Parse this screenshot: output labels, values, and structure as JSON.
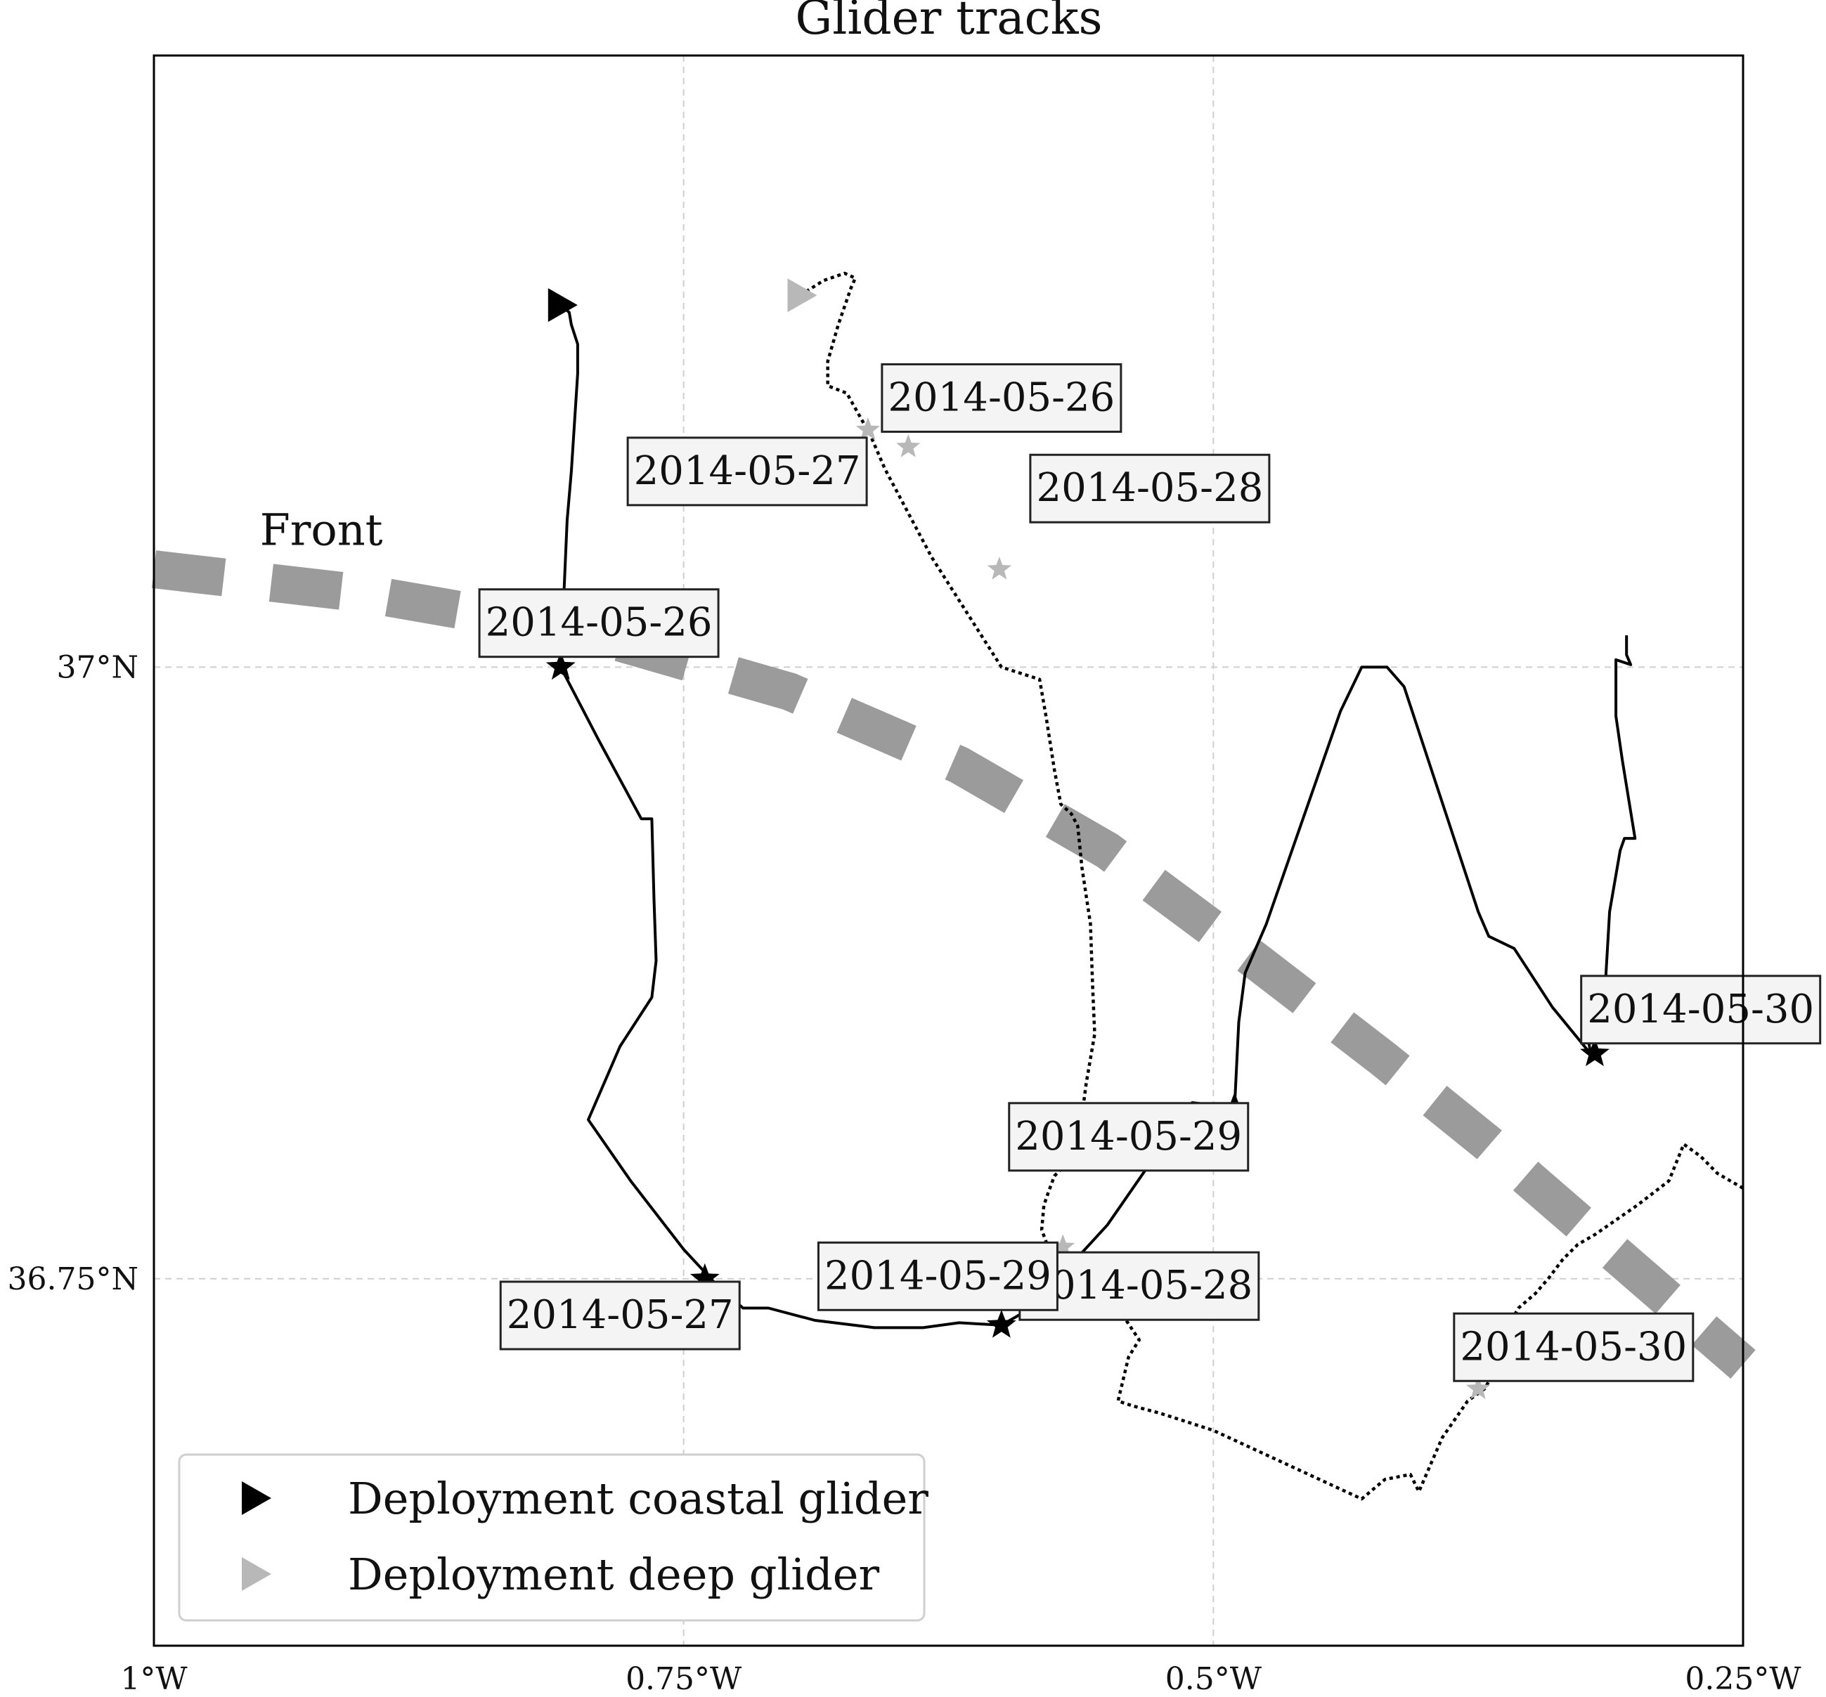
{
  "chart_data": {
    "type": "line",
    "title": "Glider tracks",
    "xlabel": "",
    "ylabel": "",
    "xlim": [
      -1.0,
      -0.25
    ],
    "ylim": [
      36.6,
      37.25
    ],
    "grid": true,
    "x_ticks": [
      {
        "value": -1.0,
        "label": "1°W"
      },
      {
        "value": -0.75,
        "label": "0.75°W"
      },
      {
        "value": -0.5,
        "label": "0.5°W"
      },
      {
        "value": -0.25,
        "label": "0.25°W"
      }
    ],
    "y_ticks": [
      {
        "value": 37.0,
        "label": "37°N"
      },
      {
        "value": 36.75,
        "label": "36.75°N"
      }
    ],
    "front": {
      "label": "Front",
      "label_pos": [
        -0.95,
        37.05
      ],
      "color": "#9b9b9b",
      "points": [
        [
          -1.0,
          37.04
        ],
        [
          -0.9,
          37.03
        ],
        [
          -0.8,
          37.015
        ],
        [
          -0.7,
          36.99
        ],
        [
          -0.62,
          36.96
        ],
        [
          -0.55,
          36.925
        ],
        [
          -0.48,
          36.88
        ],
        [
          -0.42,
          36.84
        ],
        [
          -0.37,
          36.805
        ],
        [
          -0.33,
          36.775
        ],
        [
          -0.29,
          36.745
        ],
        [
          -0.25,
          36.715
        ]
      ]
    },
    "series": [
      {
        "color": "#000000",
        "style": "solid",
        "points": [
          [
            -0.808,
            37.148
          ],
          [
            -0.804,
            37.145
          ],
          [
            -0.803,
            37.14
          ],
          [
            -0.8,
            37.132
          ],
          [
            -0.8,
            37.12
          ],
          [
            -0.803,
            37.08
          ],
          [
            -0.805,
            37.06
          ],
          [
            -0.807,
            37.02
          ],
          [
            -0.808,
            37.0
          ],
          [
            -0.79,
            36.97
          ],
          [
            -0.77,
            36.938
          ],
          [
            -0.765,
            36.938
          ],
          [
            -0.764,
            36.905
          ],
          [
            -0.763,
            36.88
          ],
          [
            -0.765,
            36.865
          ],
          [
            -0.78,
            36.845
          ],
          [
            -0.795,
            36.815
          ],
          [
            -0.775,
            36.79
          ],
          [
            -0.75,
            36.762
          ],
          [
            -0.735,
            36.748
          ],
          [
            -0.722,
            36.738
          ],
          [
            -0.71,
            36.738
          ],
          [
            -0.688,
            36.733
          ],
          [
            -0.66,
            36.73
          ],
          [
            -0.637,
            36.73
          ],
          [
            -0.62,
            36.732
          ],
          [
            -0.6,
            36.731
          ],
          [
            -0.59,
            36.736
          ],
          [
            -0.568,
            36.755
          ],
          [
            -0.55,
            36.772
          ],
          [
            -0.51,
            36.822
          ],
          [
            -0.49,
            36.82
          ],
          [
            -0.488,
            36.855
          ],
          [
            -0.485,
            36.875
          ],
          [
            -0.475,
            36.895
          ],
          [
            -0.44,
            36.982
          ],
          [
            -0.43,
            37.0
          ],
          [
            -0.418,
            37.0
          ],
          [
            -0.41,
            36.992
          ],
          [
            -0.375,
            36.9
          ],
          [
            -0.37,
            36.89
          ],
          [
            -0.358,
            36.885
          ],
          [
            -0.34,
            36.861
          ],
          [
            -0.322,
            36.842
          ],
          [
            -0.323,
            36.848
          ],
          [
            -0.318,
            36.858
          ],
          [
            -0.315,
            36.87
          ],
          [
            -0.313,
            36.9
          ],
          [
            -0.308,
            36.925
          ],
          [
            -0.306,
            36.93
          ],
          [
            -0.301,
            36.93
          ],
          [
            -0.307,
            36.962
          ],
          [
            -0.31,
            36.98
          ],
          [
            -0.31,
            37.003
          ],
          [
            -0.303,
            37.001
          ],
          [
            -0.305,
            37.005
          ],
          [
            -0.305,
            37.013
          ]
        ]
      },
      {
        "color": "#000000",
        "style": "dotted",
        "points": [
          [
            -0.695,
            37.152
          ],
          [
            -0.684,
            37.158
          ],
          [
            -0.674,
            37.161
          ],
          [
            -0.669,
            37.159
          ],
          [
            -0.671,
            37.155
          ],
          [
            -0.677,
            37.14
          ],
          [
            -0.682,
            37.125
          ],
          [
            -0.682,
            37.115
          ],
          [
            -0.673,
            37.112
          ],
          [
            -0.662,
            37.095
          ],
          [
            -0.655,
            37.081
          ],
          [
            -0.633,
            37.045
          ],
          [
            -0.6,
            37.0
          ],
          [
            -0.582,
            36.995
          ],
          [
            -0.579,
            36.98
          ],
          [
            -0.575,
            36.958
          ],
          [
            -0.572,
            36.944
          ],
          [
            -0.567,
            36.94
          ],
          [
            -0.564,
            36.935
          ],
          [
            -0.562,
            36.918
          ],
          [
            -0.558,
            36.895
          ],
          [
            -0.557,
            36.87
          ],
          [
            -0.556,
            36.85
          ],
          [
            -0.56,
            36.83
          ],
          [
            -0.563,
            36.81
          ],
          [
            -0.566,
            36.8
          ],
          [
            -0.575,
            36.792
          ],
          [
            -0.578,
            36.785
          ],
          [
            -0.58,
            36.78
          ],
          [
            -0.581,
            36.77
          ],
          [
            -0.578,
            36.763
          ],
          [
            -0.572,
            36.755
          ],
          [
            -0.563,
            36.745
          ],
          [
            -0.555,
            36.74
          ],
          [
            -0.545,
            36.738
          ],
          [
            -0.535,
            36.725
          ],
          [
            -0.54,
            36.718
          ],
          [
            -0.545,
            36.7
          ],
          [
            -0.538,
            36.698
          ],
          [
            -0.525,
            36.695
          ],
          [
            -0.5,
            36.688
          ],
          [
            -0.47,
            36.676
          ],
          [
            -0.46,
            36.672
          ],
          [
            -0.43,
            36.66
          ],
          [
            -0.419,
            36.668
          ],
          [
            -0.407,
            36.67
          ],
          [
            -0.403,
            36.663
          ],
          [
            -0.4,
            36.669
          ],
          [
            -0.392,
            36.685
          ],
          [
            -0.38,
            36.7
          ],
          [
            -0.372,
            36.705
          ],
          [
            -0.368,
            36.711
          ],
          [
            -0.365,
            36.724
          ],
          [
            -0.36,
            36.732
          ],
          [
            -0.356,
            36.738
          ],
          [
            -0.348,
            36.744
          ],
          [
            -0.342,
            36.75
          ],
          [
            -0.335,
            36.758
          ],
          [
            -0.328,
            36.764
          ],
          [
            -0.32,
            36.768
          ],
          [
            -0.3,
            36.78
          ],
          [
            -0.285,
            36.79
          ],
          [
            -0.278,
            36.805
          ],
          [
            -0.27,
            36.8
          ],
          [
            -0.262,
            36.793
          ],
          [
            -0.25,
            36.787
          ]
        ]
      }
    ],
    "deployments": [
      {
        "label": "Deployment coastal glider",
        "color": "#000000",
        "point": [
          -0.808,
          37.148
        ]
      },
      {
        "label": "Deployment deep glider",
        "color": "#b8b8b8",
        "point": [
          -0.695,
          37.152
        ]
      }
    ],
    "daily_markers": [
      {
        "date": "2014-05-26",
        "glider": "coastal",
        "color": "#000000",
        "point": [
          -0.808,
          37.0
        ],
        "label_pos": [
          -0.79,
          37.018
        ]
      },
      {
        "date": "2014-05-27",
        "glider": "coastal",
        "color": "#000000",
        "point": [
          -0.74,
          36.75
        ],
        "label_pos": [
          -0.78,
          36.735
        ]
      },
      {
        "date": "2014-05-28",
        "glider": "coastal",
        "color": "#000000",
        "point": [
          -0.6,
          36.731
        ],
        "label_pos": [
          -0.535,
          36.747
        ]
      },
      {
        "date": "2014-05-29",
        "glider": "coastal",
        "color": "#000000",
        "point": [
          -0.49,
          36.82
        ],
        "label_pos": [
          -0.54,
          36.808
        ]
      },
      {
        "date": "2014-05-30",
        "glider": "coastal",
        "color": "#000000",
        "point": [
          -0.32,
          36.842
        ],
        "label_pos": [
          -0.27,
          36.86
        ]
      },
      {
        "date": "2014-05-26",
        "glider": "deep",
        "color": "#b8b8b8",
        "point": [
          -0.663,
          37.097
        ],
        "label_pos": [
          -0.6,
          37.11
        ]
      },
      {
        "date": "2014-05-27",
        "glider": "deep",
        "color": "#b8b8b8",
        "point": [
          -0.644,
          37.09
        ],
        "label_pos": [
          -0.72,
          37.08
        ]
      },
      {
        "date": "2014-05-28",
        "glider": "deep",
        "color": "#b8b8b8",
        "point": [
          -0.601,
          37.04
        ],
        "label_pos": [
          -0.53,
          37.073
        ]
      },
      {
        "date": "2014-05-29",
        "glider": "deep",
        "color": "#b8b8b8",
        "point": [
          -0.571,
          36.763
        ],
        "label_pos": [
          -0.63,
          36.751
        ]
      },
      {
        "date": "2014-05-30",
        "glider": "deep",
        "color": "#b8b8b8",
        "point": [
          -0.375,
          36.705
        ],
        "label_pos": [
          -0.33,
          36.722
        ]
      }
    ],
    "legend": {
      "placement": "lower-left",
      "entries": [
        "Deployment coastal glider",
        "Deployment deep glider"
      ]
    }
  }
}
